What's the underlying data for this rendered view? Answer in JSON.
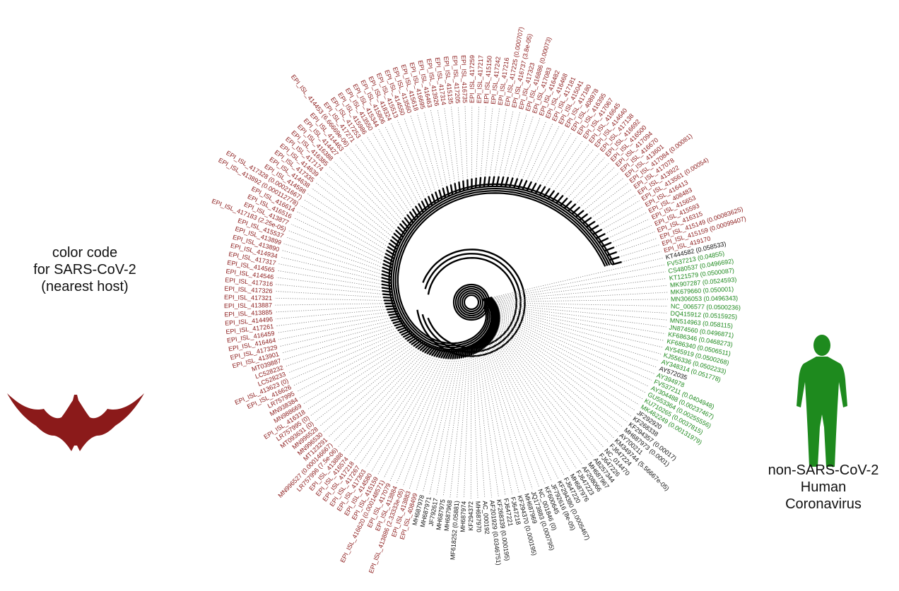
{
  "legend": {
    "line1": "color code",
    "line2": "for SARS-CoV-2",
    "line3": "(nearest host)"
  },
  "human_label": {
    "line1": "non-SARS-CoV-2",
    "line2": "Human",
    "line3": "Coronavirus"
  },
  "icons": {
    "bat": "bat-silhouette-icon",
    "human": "human-figure-icon"
  },
  "colors": {
    "bat": "#8b1a1a",
    "human": "#1e8a1e",
    "other": "#111111",
    "tree": "#000000",
    "leader": "#777777"
  },
  "leaves": [
    {
      "label": "KT444582 (0.058533)",
      "group": "other"
    },
    {
      "label": "FV537213 (0.04855)",
      "group": "human"
    },
    {
      "label": "CS480537 (0.0496692)",
      "group": "human"
    },
    {
      "label": "KT121579 (0.0500087)",
      "group": "human"
    },
    {
      "label": "MK907287 (0.0524593)",
      "group": "human"
    },
    {
      "label": "MK679660 (0.050001)",
      "group": "human"
    },
    {
      "label": "MN306053 (0.0496343)",
      "group": "human"
    },
    {
      "label": "NC_006577 (0.0500236)",
      "group": "human"
    },
    {
      "label": "DQ415912 (0.0515925)",
      "group": "human"
    },
    {
      "label": "MN514963 (0.058115)",
      "group": "human"
    },
    {
      "label": "JN874560 (0.0496871)",
      "group": "human"
    },
    {
      "label": "KF686346 (0.0468273)",
      "group": "human"
    },
    {
      "label": "KF686340 (0.0506511)",
      "group": "human"
    },
    {
      "label": "AY545919 (0.0500268)",
      "group": "human"
    },
    {
      "label": "KJ556336 (0.0502233)",
      "group": "human"
    },
    {
      "label": "AY348314 (0.051778)",
      "group": "human"
    },
    {
      "label": "AY572035",
      "group": "other"
    },
    {
      "label": "AY394978",
      "group": "human"
    },
    {
      "label": "FV537211 (0.0404948)",
      "group": "human"
    },
    {
      "label": "AY304488 (0.00237467)",
      "group": "human"
    },
    {
      "label": "GU553364 (0.00255556)",
      "group": "human"
    },
    {
      "label": "KU710265 (0.0037815)",
      "group": "human"
    },
    {
      "label": "MK462249 (0.00131979)",
      "group": "human"
    },
    {
      "label": "JF292920",
      "group": "other"
    },
    {
      "label": "KF268338",
      "group": "other"
    },
    {
      "label": "KF294357 (0.00017)",
      "group": "other"
    },
    {
      "label": "MH687973 (0.0001)",
      "group": "other"
    },
    {
      "label": "AY700211",
      "group": "other"
    },
    {
      "label": "KM349744 (5.56667e-05)",
      "group": "other"
    },
    {
      "label": "FJ647224",
      "group": "other"
    },
    {
      "label": "NC_014470",
      "group": "other"
    },
    {
      "label": "FJ647226",
      "group": "other"
    },
    {
      "label": "AB257344",
      "group": "other"
    },
    {
      "label": "MH687967",
      "group": "other"
    },
    {
      "label": "AF208066",
      "group": "other"
    },
    {
      "label": "FJ647223",
      "group": "other"
    },
    {
      "label": "MH687976",
      "group": "other"
    },
    {
      "label": "FJ647220",
      "group": "other"
    },
    {
      "label": "KF294380 (0.0005467)",
      "group": "other"
    },
    {
      "label": "JF792616 (8e-05)",
      "group": "other"
    },
    {
      "label": "KF600645",
      "group": "other"
    },
    {
      "label": "NC_001846 (0)",
      "group": "other"
    },
    {
      "label": "JQ173883 (0.000795)",
      "group": "other"
    },
    {
      "label": "MH687969",
      "group": "other"
    },
    {
      "label": "KF294370 (0.000195)",
      "group": "other"
    },
    {
      "label": "FJ647218",
      "group": "other"
    },
    {
      "label": "FJ647221",
      "group": "other"
    },
    {
      "label": "KF268339 (0.000195)",
      "group": "other"
    },
    {
      "label": "AF201929 (0.0346751)",
      "group": "other"
    },
    {
      "label": "AC_000192",
      "group": "other"
    },
    {
      "label": "MH687970",
      "group": "other"
    },
    {
      "label": "KF294372",
      "group": "other"
    },
    {
      "label": "MH687974",
      "group": "other"
    },
    {
      "label": "MF618252 (0.05881)",
      "group": "other"
    },
    {
      "label": "MH687968",
      "group": "other"
    },
    {
      "label": "MH687975",
      "group": "other"
    },
    {
      "label": "JF792617",
      "group": "other"
    },
    {
      "label": "MH687971",
      "group": "other"
    },
    {
      "label": "MH687978",
      "group": "other"
    },
    {
      "label": "EPI_ISL_408499",
      "group": "bat"
    },
    {
      "label": "EPI_ISL_413883",
      "group": "bat"
    },
    {
      "label": "EPI_ISL_413886 (2.33333e-05)",
      "group": "bat"
    },
    {
      "label": "EPI_ISL_413884",
      "group": "bat"
    },
    {
      "label": "EPI_ISL_417079",
      "group": "bat"
    },
    {
      "label": "EPI_ISL_416620 (0.000148571)",
      "group": "bat"
    },
    {
      "label": "EPI_ISL_415159",
      "group": "bat"
    },
    {
      "label": "EPI_ISL_414580",
      "group": "bat"
    },
    {
      "label": "EPI_ISL_417303",
      "group": "bat"
    },
    {
      "label": "EPI_ISL_417267",
      "group": "bat"
    },
    {
      "label": "EPI_ISL_417218",
      "group": "bat"
    },
    {
      "label": "EPI_ISL_416574",
      "group": "bat"
    },
    {
      "label": "EPI_ISL_413888",
      "group": "bat"
    },
    {
      "label": "LR757996 (7.5e-06)",
      "group": "bat"
    },
    {
      "label": "MN996527 (0.000146667)",
      "group": "bat"
    },
    {
      "label": "MT123291",
      "group": "bat"
    },
    {
      "label": "MN996530",
      "group": "bat"
    },
    {
      "label": "MN996528",
      "group": "bat"
    },
    {
      "label": "MT093631 (0)",
      "group": "bat"
    },
    {
      "label": "LR757995 (0)",
      "group": "bat"
    },
    {
      "label": "EPI_ISL_416318",
      "group": "bat"
    },
    {
      "label": "MN988669",
      "group": "bat"
    },
    {
      "label": "MN938384",
      "group": "bat"
    },
    {
      "label": "LR757995",
      "group": "bat"
    },
    {
      "label": "EPI_ISL_416626",
      "group": "bat"
    },
    {
      "label": "EPI_ISL_413623 (0)",
      "group": "bat"
    },
    {
      "label": "LC528233",
      "group": "bat"
    },
    {
      "label": "LC528232",
      "group": "bat"
    },
    {
      "label": "MT039887",
      "group": "bat"
    },
    {
      "label": "EPI_ISL_413901",
      "group": "bat"
    },
    {
      "label": "EPI_ISL_417329",
      "group": "bat"
    },
    {
      "label": "EPI_ISL_416464",
      "group": "bat"
    },
    {
      "label": "EPI_ISL_416459",
      "group": "bat"
    },
    {
      "label": "EPI_ISL_417261",
      "group": "bat"
    },
    {
      "label": "EPI_ISL_414496",
      "group": "bat"
    },
    {
      "label": "EPI_ISL_413885",
      "group": "bat"
    },
    {
      "label": "EPI_ISL_413887",
      "group": "bat"
    },
    {
      "label": "EPI_ISL_417321",
      "group": "bat"
    },
    {
      "label": "EPI_ISL_417326",
      "group": "bat"
    },
    {
      "label": "EPI_ISL_417316",
      "group": "bat"
    },
    {
      "label": "EPI_ISL_414546",
      "group": "bat"
    },
    {
      "label": "EPI_ISL_414565",
      "group": "bat"
    },
    {
      "label": "EPI_ISL_417317",
      "group": "bat"
    },
    {
      "label": "EPI_ISL_414934",
      "group": "bat"
    },
    {
      "label": "EPI_ISL_413890",
      "group": "bat"
    },
    {
      "label": "EPI_ISL_413899",
      "group": "bat"
    },
    {
      "label": "EPI_ISL_415537",
      "group": "bat"
    },
    {
      "label": "EPI_ISL_417183 (2.25e-05)",
      "group": "bat"
    },
    {
      "label": "EPI_ISL_413877",
      "group": "bat"
    },
    {
      "label": "EPI_ISL_416516",
      "group": "bat"
    },
    {
      "label": "EPI_ISL_416614",
      "group": "bat"
    },
    {
      "label": "EPI_ISL_413892 (0.000112778)",
      "group": "bat"
    },
    {
      "label": "EPI_ISL_417328 (0.00021667)",
      "group": "bat"
    },
    {
      "label": "EPI_ISL_414598",
      "group": "bat"
    },
    {
      "label": "EPI_ISL_414638",
      "group": "bat"
    },
    {
      "label": "EPI_ISL_417335",
      "group": "bat"
    },
    {
      "label": "EPI_ISL_414639",
      "group": "bat"
    },
    {
      "label": "EPI_ISL_417174",
      "group": "bat"
    },
    {
      "label": "EPI_ISL_416385",
      "group": "bat"
    },
    {
      "label": "EPI_ISL_416388",
      "group": "bat"
    },
    {
      "label": "EPI_ISL_414427",
      "group": "bat"
    },
    {
      "label": "EPI_ISL_414463",
      "group": "bat"
    },
    {
      "label": "EPI_ISL_414453 (6.66669e-06)",
      "group": "bat"
    },
    {
      "label": "EPI_ISL_417271",
      "group": "bat"
    },
    {
      "label": "EPI_ISL_417253",
      "group": "bat"
    },
    {
      "label": "EPI_ISL_415986",
      "group": "bat"
    },
    {
      "label": "EPI_ISL_413550",
      "group": "bat"
    },
    {
      "label": "EPI_ISL_415344",
      "group": "bat"
    },
    {
      "label": "EPI_ISL_415806",
      "group": "bat"
    },
    {
      "label": "EPI_ISL_418324",
      "group": "bat"
    },
    {
      "label": "EPI_ISL_415513",
      "group": "bat"
    },
    {
      "label": "EPI_ISL_414550",
      "group": "bat"
    },
    {
      "label": "EPI_ISL_413560",
      "group": "bat"
    },
    {
      "label": "EPI_ISL_415618",
      "group": "bat"
    },
    {
      "label": "EPI_ISL_416695",
      "group": "bat"
    },
    {
      "label": "EPI_ISL_416463",
      "group": "bat"
    },
    {
      "label": "EPI_ISL_413926",
      "group": "bat"
    },
    {
      "label": "EPI_ISL_417314",
      "group": "bat"
    },
    {
      "label": "EPI_ISL_415135",
      "group": "bat"
    },
    {
      "label": "EPI_ISL_417205",
      "group": "bat"
    },
    {
      "label": "EPI_ISL_416735",
      "group": "bat"
    },
    {
      "label": "EPI_ISL_417259",
      "group": "bat"
    },
    {
      "label": "EPI_ISL_417217",
      "group": "bat"
    },
    {
      "label": "EPI_ISL_415150",
      "group": "bat"
    },
    {
      "label": "EPI_ISL_417242",
      "group": "bat"
    },
    {
      "label": "EPI_ISL_417216",
      "group": "bat"
    },
    {
      "label": "EPI_ISL_417225 (0.000707)",
      "group": "bat"
    },
    {
      "label": "EPI_ISL_416737 (3.8e-05)",
      "group": "bat"
    },
    {
      "label": "EPI_ISL_417323",
      "group": "bat"
    },
    {
      "label": "EPI_ISL_416886 (0.00073)",
      "group": "bat"
    },
    {
      "label": "EPI_ISL_417083",
      "group": "bat"
    },
    {
      "label": "EPI_ISL_416482",
      "group": "bat"
    },
    {
      "label": "EPI_ISL_416468",
      "group": "bat"
    },
    {
      "label": "EPI_ISL_417181",
      "group": "bat"
    },
    {
      "label": "EPI_ISL_415041",
      "group": "bat"
    },
    {
      "label": "EPI_ISL_417180",
      "group": "bat"
    },
    {
      "label": "EPI_ISL_408978",
      "group": "bat"
    },
    {
      "label": "EPI_ISL_416395",
      "group": "bat"
    },
    {
      "label": "EPI_ISL_417067",
      "group": "bat"
    },
    {
      "label": "EPI_ISL_416645",
      "group": "bat"
    },
    {
      "label": "EPI_ISL_414640",
      "group": "bat"
    },
    {
      "label": "EPI_ISL_417138",
      "group": "bat"
    },
    {
      "label": "EPI_ISL_416692",
      "group": "bat"
    },
    {
      "label": "EPI_ISL_416500",
      "group": "bat"
    },
    {
      "label": "EPI_ISL_417094",
      "group": "bat"
    },
    {
      "label": "EPI_ISL_416670",
      "group": "bat"
    },
    {
      "label": "EPI_ISL_413601",
      "group": "bat"
    },
    {
      "label": "EPI_ISL_417084 (0.00081)",
      "group": "bat"
    },
    {
      "label": "EPI_ISL_417078",
      "group": "bat"
    },
    {
      "label": "EPI_ISL_413922",
      "group": "bat"
    },
    {
      "label": "EPI_ISL_413561 (0.00054)",
      "group": "bat"
    },
    {
      "label": "EPI_ISL_416413",
      "group": "bat"
    },
    {
      "label": "EPI_ISL_408483",
      "group": "bat"
    },
    {
      "label": "EPI_ISL_415653",
      "group": "bat"
    },
    {
      "label": "EPI_ISL_415593",
      "group": "bat"
    },
    {
      "label": "EPI_ISL_416315",
      "group": "bat"
    },
    {
      "label": "EPI_ISL_415149 (0.00083625)",
      "group": "bat"
    },
    {
      "label": "EPI_ISL_415159 (0.00099407)",
      "group": "bat"
    },
    {
      "label": "EPI_ISL_419170",
      "group": "bat"
    }
  ]
}
